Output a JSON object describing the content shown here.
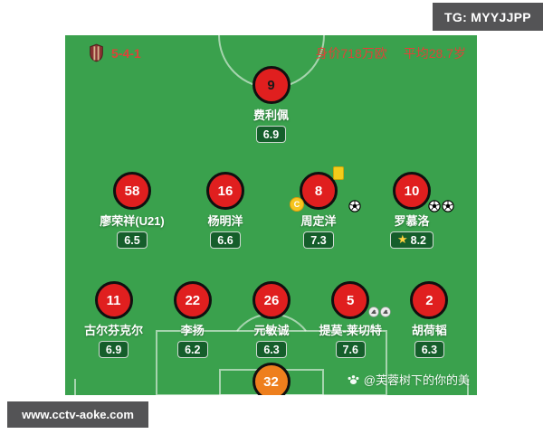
{
  "banners": {
    "tg": "TG: MYYJJPP",
    "site": "www.cctv-aoke.com"
  },
  "header": {
    "formation": "5-4-1",
    "market_value": "身价718万欧",
    "average_age": "平均28.7岁"
  },
  "watermark": {
    "text": "@芙蓉树下的你的美",
    "icon": "paw-icon"
  },
  "colors": {
    "pitch_green": "#3aa14d",
    "badge_green": "#155e2b",
    "circle_red": "#e01f1f",
    "gk_orange": "#ee7f1d",
    "accent_red": "#de4338",
    "banner_gray": "#545456",
    "card_yellow": "#f3cc1a",
    "star_gold": "#ffd23e"
  },
  "icons": {
    "crest": "team-crest",
    "goal": "soccer-ball-icon",
    "assist": "boot-icon",
    "captain": "captain-badge",
    "yellow_card": "yellow-card-icon",
    "star": "star-icon",
    "watermark": "paw-icon"
  },
  "pitch": {
    "rows": [
      {
        "players": [
          {
            "number": "9",
            "name": "费利佩",
            "rating": "6.9",
            "number_color": "#1a1a1a"
          }
        ]
      },
      {
        "players": [
          {
            "number": "58",
            "name": "廖荣祥(U21)",
            "rating": "6.5"
          },
          {
            "number": "16",
            "name": "杨明洋",
            "rating": "6.6"
          },
          {
            "number": "8",
            "name": "周定洋",
            "rating": "7.3",
            "captain": true,
            "yellow_card": true,
            "goals": 1
          },
          {
            "number": "10",
            "name": "罗慕洛",
            "rating": "8.2",
            "star": true,
            "goals": 2
          }
        ]
      },
      {
        "players": [
          {
            "number": "11",
            "name": "古尔芬克尔",
            "rating": "6.9"
          },
          {
            "number": "22",
            "name": "李扬",
            "rating": "6.2"
          },
          {
            "number": "26",
            "name": "元敏诚",
            "rating": "6.3"
          },
          {
            "number": "5",
            "name": "提莫-莱切特",
            "rating": "7.6",
            "assists": 2
          },
          {
            "number": "2",
            "name": "胡荷韬",
            "rating": "6.3"
          }
        ]
      }
    ],
    "goalkeeper": {
      "number": "32"
    }
  }
}
